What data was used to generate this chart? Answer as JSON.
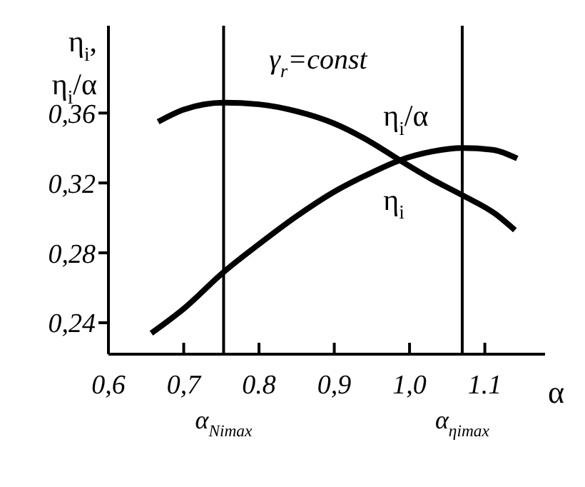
{
  "chart_data": {
    "type": "line",
    "xlabel": "α",
    "ylabel": "η$_{i}$, η$_{i}$/α",
    "annotations": [
      "γ$_{r}$=const"
    ],
    "xlim": [
      0.6,
      1.18
    ],
    "xticks": [
      {
        "value": 0.6,
        "label": "0,6"
      },
      {
        "value": 0.7,
        "label": "0,7"
      },
      {
        "value": 0.8,
        "label": "0.8"
      },
      {
        "value": 0.9,
        "label": "0,9"
      },
      {
        "value": 1.0,
        "label": "1,0"
      },
      {
        "value": 1.1,
        "label": "1.1"
      }
    ],
    "ylim": [
      0.222,
      0.41
    ],
    "yticks": [
      {
        "value": 0.24,
        "label": "0,24"
      },
      {
        "value": 0.28,
        "label": "0,28"
      },
      {
        "value": 0.32,
        "label": "0,32"
      },
      {
        "value": 0.36,
        "label": "0,36"
      }
    ],
    "grid": false,
    "legend": false,
    "marker": "none",
    "line_style": "solid",
    "ref_lines": [
      {
        "axis": "x",
        "value": 0.753,
        "label": "α$_{Nimax}$",
        "color": "#000000"
      },
      {
        "axis": "x",
        "value": 1.07,
        "label": "α$_{ηimax}$",
        "color": "#000000"
      }
    ],
    "series": [
      {
        "name": "η$_{i}$/α",
        "color": "#000000",
        "x": [
          0.666,
          0.7,
          0.753,
          0.8,
          0.85,
          0.9,
          0.95,
          0.987,
          1.03,
          1.07,
          1.115,
          1.14
        ],
        "values": [
          0.355,
          0.362,
          0.366,
          0.365,
          0.361,
          0.354,
          0.343,
          0.333,
          0.322,
          0.313,
          0.302,
          0.293
        ]
      },
      {
        "name": "η$_{i}$",
        "color": "#000000",
        "x": [
          0.657,
          0.7,
          0.753,
          0.8,
          0.85,
          0.9,
          0.95,
          0.987,
          1.03,
          1.07,
          1.11,
          1.143
        ],
        "values": [
          0.234,
          0.248,
          0.269,
          0.285,
          0.301,
          0.315,
          0.326,
          0.333,
          0.338,
          0.34,
          0.339,
          0.334
        ]
      }
    ]
  }
}
